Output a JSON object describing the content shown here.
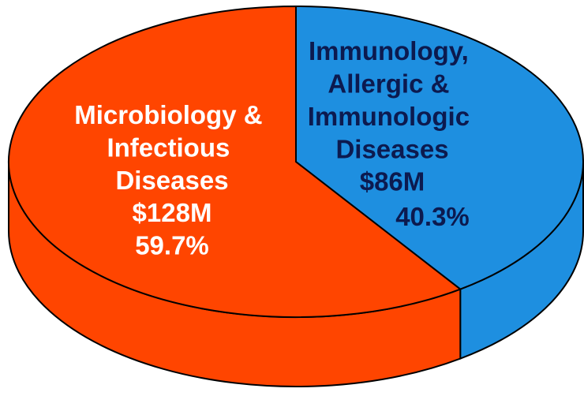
{
  "chart_data": {
    "type": "pie3d",
    "categories": [
      "Microbiology &\nInfectious\nDiseases",
      "Immunology,\nAllergic &\nImmunologic\nDiseases"
    ],
    "amount_labels": [
      "$128M",
      "$86M"
    ],
    "values": [
      59.7,
      40.3
    ],
    "value_labels": [
      "59.7%",
      "40.3%"
    ],
    "colors": [
      "#ff4500",
      "#1e8fe0"
    ],
    "label_colors": [
      "#ffffff",
      "#0c1a4f"
    ]
  }
}
